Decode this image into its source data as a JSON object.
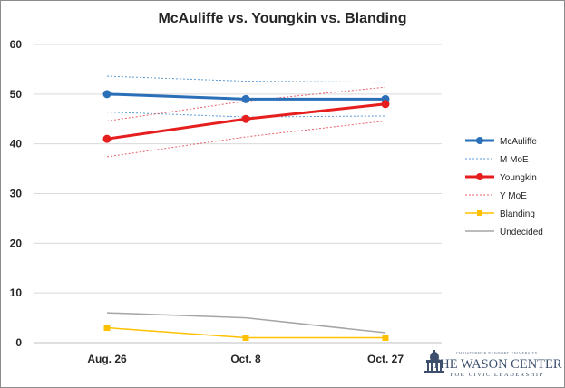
{
  "chart_data": {
    "type": "line",
    "title": "McAuliffe vs. Youngkin vs. Blanding",
    "xlabel": "",
    "ylabel": "",
    "categories": [
      "Aug. 26",
      "Oct. 8",
      "Oct. 27"
    ],
    "ylim": [
      0,
      60
    ],
    "yticks": [
      "0",
      "10",
      "20",
      "30",
      "40",
      "50",
      "60"
    ],
    "grid": true,
    "legend_position": "right",
    "series": [
      {
        "name": "McAuliffe",
        "values": [
          50,
          49,
          49
        ],
        "color": "#2a6fb8",
        "style": "solid-thick",
        "marker": "circle"
      },
      {
        "name": "M MoE",
        "values": [
          53.6,
          52.6,
          52.4
        ],
        "values_lower": [
          46.4,
          45.4,
          45.6
        ],
        "color": "#5b9bd5",
        "style": "dotted"
      },
      {
        "name": "Youngkin",
        "values": [
          41,
          45,
          48
        ],
        "color": "#e61e1e",
        "style": "solid-thick",
        "marker": "circle"
      },
      {
        "name": "Y MoE",
        "values": [
          44.6,
          48.6,
          51.4
        ],
        "values_lower": [
          37.4,
          41.4,
          44.6
        ],
        "color": "#e8606b",
        "style": "dotted"
      },
      {
        "name": "Blanding",
        "values": [
          3,
          1,
          1
        ],
        "color": "#ffc000",
        "style": "solid",
        "marker": "square"
      },
      {
        "name": "Undecided",
        "values": [
          6,
          5,
          2
        ],
        "color": "#a5a5a5",
        "style": "solid"
      }
    ]
  },
  "logo": {
    "top_text": "CHRISTOPHER NEWPORT UNIVERSITY",
    "name": "THE WASON CENTER",
    "subtitle": "FOR CIVIC LEADERSHIP",
    "color": "#3d4f6d"
  }
}
